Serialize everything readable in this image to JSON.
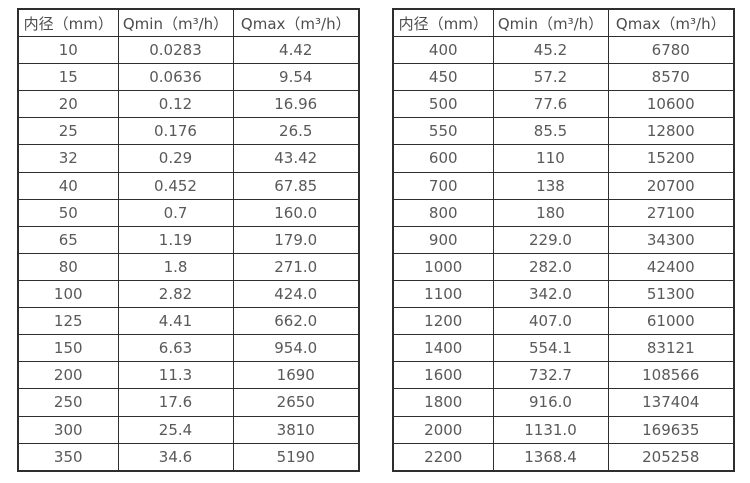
{
  "page": {
    "background": "#ffffff"
  },
  "colors": {
    "table_border": "#2e2e2e",
    "cell_text": "#595959",
    "header_text": "#4d4d4d"
  },
  "tables": [
    {
      "name": "flow-spec-small-diameters",
      "headers": [
        "内径（mm）",
        "Qmin（m³/h）",
        "Qmax（m³/h）"
      ],
      "rows": [
        [
          "10",
          "0.0283",
          "4.42"
        ],
        [
          "15",
          "0.0636",
          "9.54"
        ],
        [
          "20",
          "0.12",
          "16.96"
        ],
        [
          "25",
          "0.176",
          "26.5"
        ],
        [
          "32",
          "0.29",
          "43.42"
        ],
        [
          "40",
          "0.452",
          "67.85"
        ],
        [
          "50",
          "0.7",
          "160.0"
        ],
        [
          "65",
          "1.19",
          "179.0"
        ],
        [
          "80",
          "1.8",
          "271.0"
        ],
        [
          "100",
          "2.82",
          "424.0"
        ],
        [
          "125",
          "4.41",
          "662.0"
        ],
        [
          "150",
          "6.63",
          "954.0"
        ],
        [
          "200",
          "11.3",
          "1690"
        ],
        [
          "250",
          "17.6",
          "2650"
        ],
        [
          "300",
          "25.4",
          "3810"
        ],
        [
          "350",
          "34.6",
          "5190"
        ]
      ]
    },
    {
      "name": "flow-spec-large-diameters",
      "headers": [
        "内径（mm）",
        "Qmin（m³/h）",
        "Qmax（m³/h）"
      ],
      "rows": [
        [
          "400",
          "45.2",
          "6780"
        ],
        [
          "450",
          "57.2",
          "8570"
        ],
        [
          "500",
          "77.6",
          "10600"
        ],
        [
          "550",
          "85.5",
          "12800"
        ],
        [
          "600",
          "110",
          "15200"
        ],
        [
          "700",
          "138",
          "20700"
        ],
        [
          "800",
          "180",
          "27100"
        ],
        [
          "900",
          "229.0",
          "34300"
        ],
        [
          "1000",
          "282.0",
          "42400"
        ],
        [
          "1100",
          "342.0",
          "51300"
        ],
        [
          "1200",
          "407.0",
          "61000"
        ],
        [
          "1400",
          "554.1",
          "83121"
        ],
        [
          "1600",
          "732.7",
          "108566"
        ],
        [
          "1800",
          "916.0",
          "137404"
        ],
        [
          "2000",
          "1131.0",
          "169635"
        ],
        [
          "2200",
          "1368.4",
          "205258"
        ]
      ]
    }
  ],
  "chart_data": [
    {
      "type": "table",
      "title": "",
      "columns": [
        "内径（mm）",
        "Qmin（m³/h）",
        "Qmax（m³/h）"
      ],
      "rows": [
        [
          10,
          0.0283,
          4.42
        ],
        [
          15,
          0.0636,
          9.54
        ],
        [
          20,
          0.12,
          16.96
        ],
        [
          25,
          0.176,
          26.5
        ],
        [
          32,
          0.29,
          43.42
        ],
        [
          40,
          0.452,
          67.85
        ],
        [
          50,
          0.7,
          160.0
        ],
        [
          65,
          1.19,
          179.0
        ],
        [
          80,
          1.8,
          271.0
        ],
        [
          100,
          2.82,
          424.0
        ],
        [
          125,
          4.41,
          662.0
        ],
        [
          150,
          6.63,
          954.0
        ],
        [
          200,
          11.3,
          1690
        ],
        [
          250,
          17.6,
          2650
        ],
        [
          300,
          25.4,
          3810
        ],
        [
          350,
          34.6,
          5190
        ]
      ]
    },
    {
      "type": "table",
      "title": "",
      "columns": [
        "内径（mm）",
        "Qmin（m³/h）",
        "Qmax（m³/h）"
      ],
      "rows": [
        [
          400,
          45.2,
          6780
        ],
        [
          450,
          57.2,
          8570
        ],
        [
          500,
          77.6,
          10600
        ],
        [
          550,
          85.5,
          12800
        ],
        [
          600,
          110,
          15200
        ],
        [
          700,
          138,
          20700
        ],
        [
          800,
          180,
          27100
        ],
        [
          900,
          229.0,
          34300
        ],
        [
          1000,
          282.0,
          42400
        ],
        [
          1100,
          342.0,
          51300
        ],
        [
          1200,
          407.0,
          61000
        ],
        [
          1400,
          554.1,
          83121
        ],
        [
          1600,
          732.7,
          108566
        ],
        [
          1800,
          916.0,
          137404
        ],
        [
          2000,
          1131.0,
          169635
        ],
        [
          2200,
          1368.4,
          205258
        ]
      ]
    }
  ]
}
